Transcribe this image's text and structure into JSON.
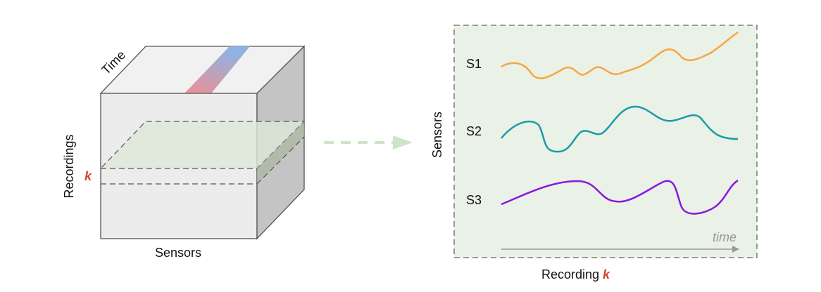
{
  "cube": {
    "time_label": "Time",
    "recordings_label": "Recordings",
    "k_label": "k",
    "sensors_label": "Sensors"
  },
  "panel": {
    "y_label": "Sensors",
    "series_labels": [
      "S1",
      "S2",
      "S3"
    ],
    "time_label": "time",
    "caption": "Recording",
    "caption_k": "k"
  }
}
